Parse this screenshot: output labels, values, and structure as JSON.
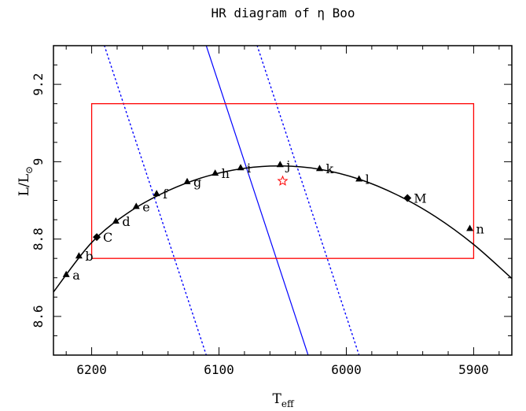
{
  "chart_data": {
    "type": "line",
    "title": "HR diagram of η Boo",
    "xlabel": "T_eff",
    "xlabel_main": "T",
    "xlabel_sub": "eff",
    "ylabel": "L/L⊙",
    "ylabel_main": "L/L",
    "ylabel_sub": "⊙",
    "xlim": [
      6230,
      5870
    ],
    "ylim": [
      8.5,
      9.3
    ],
    "x_ticks": [
      {
        "value": 6200,
        "label": "6200"
      },
      {
        "value": 6100,
        "label": "6100"
      },
      {
        "value": 6000,
        "label": "6000"
      },
      {
        "value": 5900,
        "label": "5900"
      }
    ],
    "y_ticks": [
      {
        "value": 8.6,
        "label": "8.6"
      },
      {
        "value": 8.8,
        "label": "8.8"
      },
      {
        "value": 9.0,
        "label": "9"
      },
      {
        "value": 9.2,
        "label": "9.2"
      }
    ],
    "track": {
      "color": "#000000",
      "x": [
        6230,
        6200,
        6170,
        6140,
        6110,
        6080,
        6050,
        6020,
        5990,
        5960,
        5930,
        5900,
        5870
      ],
      "y": [
        8.663,
        8.791,
        8.871,
        8.925,
        8.962,
        8.983,
        8.989,
        8.98,
        8.955,
        8.914,
        8.858,
        8.786,
        8.698
      ]
    },
    "points": [
      {
        "label": "a",
        "x": 6220,
        "y": 8.708,
        "marker": "triangle"
      },
      {
        "label": "b",
        "x": 6210,
        "y": 8.756,
        "marker": "triangle"
      },
      {
        "label": "C",
        "x": 6196,
        "y": 8.805,
        "marker": "diamond"
      },
      {
        "label": "d",
        "x": 6181,
        "y": 8.846,
        "marker": "triangle"
      },
      {
        "label": "e",
        "x": 6165,
        "y": 8.884,
        "marker": "triangle"
      },
      {
        "label": "f",
        "x": 6149,
        "y": 8.917,
        "marker": "triangle"
      },
      {
        "label": "g",
        "x": 6125,
        "y": 8.948,
        "marker": "triangle"
      },
      {
        "label": "h",
        "x": 6103,
        "y": 8.97,
        "marker": "triangle"
      },
      {
        "label": "i",
        "x": 6083,
        "y": 8.984,
        "marker": "triangle"
      },
      {
        "label": "j",
        "x": 6052,
        "y": 8.992,
        "marker": "triangle"
      },
      {
        "label": "k",
        "x": 6021,
        "y": 8.982,
        "marker": "triangle"
      },
      {
        "label": "l",
        "x": 5990,
        "y": 8.955,
        "marker": "triangle"
      },
      {
        "label": "M",
        "x": 5952,
        "y": 8.906,
        "marker": "diamond"
      },
      {
        "label": "n",
        "x": 5903,
        "y": 8.827,
        "marker": "triangle"
      }
    ],
    "observed": {
      "x": 6050,
      "y": 8.95,
      "marker": "star",
      "color": "#ff0000"
    },
    "error_box": {
      "x": [
        6200,
        5900
      ],
      "y": [
        8.75,
        9.15
      ],
      "color": "#ff0000"
    },
    "lines": [
      {
        "style": "solid",
        "color": "#0000ff",
        "x": [
          6110.0,
          6030.0
        ],
        "y": [
          9.3,
          8.5
        ]
      },
      {
        "style": "dotted",
        "color": "#0000ff",
        "x": [
          6190.0,
          6110.0
        ],
        "y": [
          9.3,
          8.5
        ]
      },
      {
        "style": "dotted",
        "color": "#0000ff",
        "x": [
          6070.0,
          5990.0
        ],
        "y": [
          9.3,
          8.5
        ]
      }
    ]
  }
}
